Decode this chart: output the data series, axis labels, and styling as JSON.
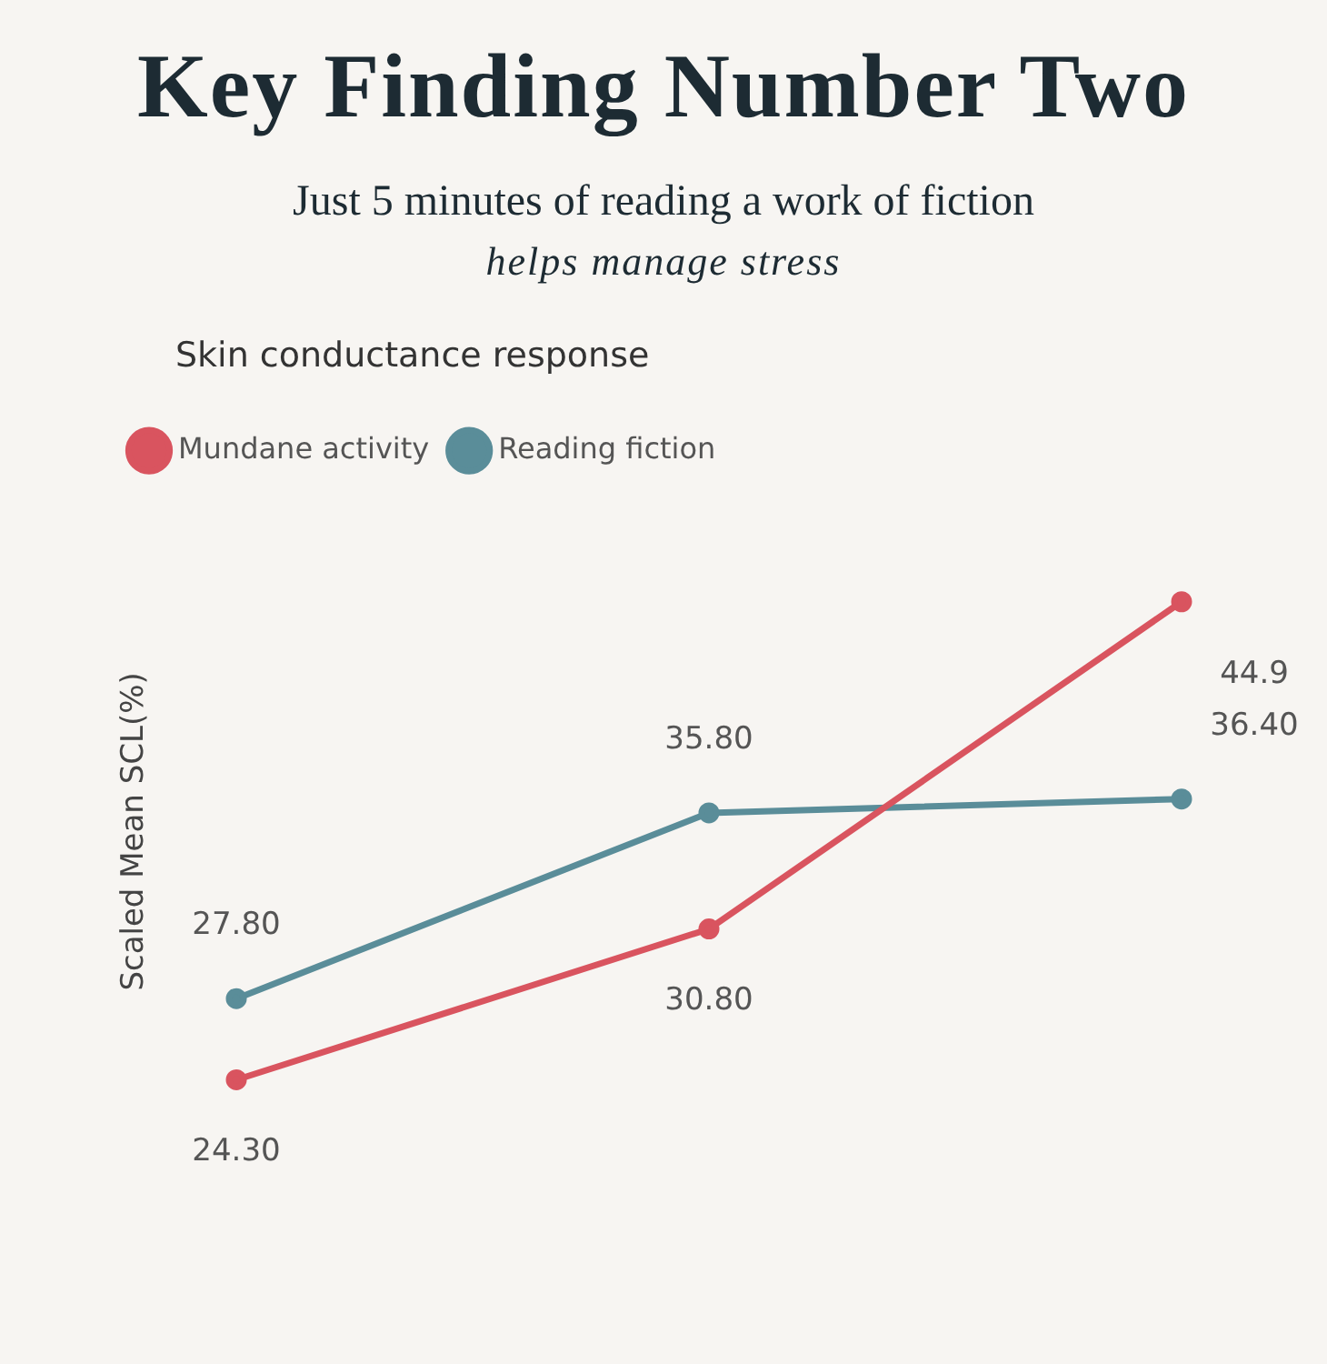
{
  "chart_data": {
    "type": "line",
    "title": "Key Finding Number Two",
    "subtitle": "Just 5 minutes of reading a work of fiction",
    "annotations": [
      "helps manage stress"
    ],
    "legend_title": "Skin conductance response",
    "legend": "top left",
    "ylabel": "Scaled Mean SCL(%)",
    "categories": [
      null,
      null,
      null
    ],
    "grid": false,
    "marker": "circle",
    "line_style": "solid",
    "series": [
      {
        "name": "Mundane activity",
        "color": "#d9545f",
        "values": [
          24.3,
          30.8,
          44.9
        ],
        "value_labels": [
          "24.30",
          "30.80",
          "44.9"
        ]
      },
      {
        "name": "Reading fiction",
        "color": "#5a8d99",
        "values": [
          27.8,
          35.8,
          36.4
        ],
        "value_labels": [
          "27.80",
          "35.80",
          "36.40"
        ]
      }
    ]
  }
}
